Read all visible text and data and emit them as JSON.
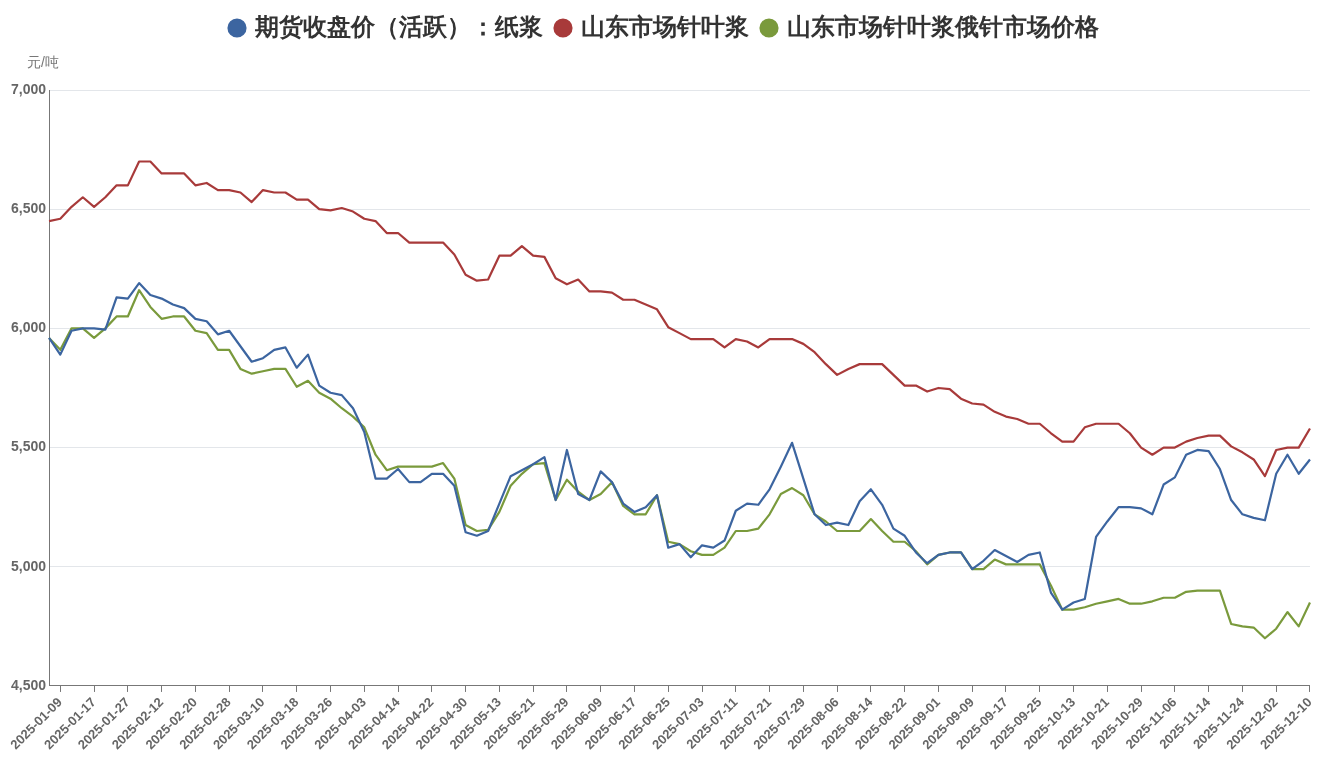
{
  "chart_data": {
    "type": "line",
    "ylabel": "元/吨",
    "categories": [
      null,
      "2025-01-09",
      null,
      null,
      "2025-01-17",
      null,
      null,
      "2025-01-27",
      null,
      null,
      "2025-02-12",
      null,
      null,
      "2025-02-20",
      null,
      null,
      "2025-02-28",
      null,
      null,
      "2025-03-10",
      null,
      null,
      "2025-03-18",
      null,
      null,
      "2025-03-26",
      null,
      null,
      "2025-04-03",
      null,
      null,
      "2025-04-14",
      null,
      null,
      "2025-04-22",
      null,
      null,
      "2025-04-30",
      null,
      null,
      "2025-05-13",
      null,
      null,
      "2025-05-21",
      null,
      null,
      "2025-05-29",
      null,
      null,
      "2025-06-09",
      null,
      null,
      "2025-06-17",
      null,
      null,
      "2025-06-25",
      null,
      null,
      "2025-07-03",
      null,
      null,
      "2025-07-11",
      null,
      null,
      "2025-07-21",
      null,
      null,
      "2025-07-29",
      null,
      null,
      "2025-08-06",
      null,
      null,
      "2025-08-14",
      null,
      null,
      "2025-08-22",
      null,
      null,
      "2025-09-01",
      null,
      null,
      "2025-09-09",
      null,
      null,
      "2025-09-17",
      null,
      null,
      "2025-09-25",
      null,
      null,
      "2025-10-13",
      null,
      null,
      "2025-10-21",
      null,
      null,
      "2025-10-29",
      null,
      null,
      "2025-11-06",
      null,
      null,
      "2025-11-14",
      null,
      null,
      "2025-11-24",
      null,
      null,
      "2025-12-02",
      null,
      null,
      "2025-12-10"
    ],
    "series": [
      {
        "name": "期货收盘价（活跃）：纸浆",
        "color": "#3c65a0",
        "values": [
          5960,
          5890,
          5990,
          6000,
          6000,
          5995,
          6130,
          6125,
          6190,
          6140,
          6125,
          6100,
          6085,
          6040,
          6030,
          5975,
          5990,
          5925,
          5860,
          5875,
          5910,
          5920,
          5835,
          5890,
          5760,
          5730,
          5720,
          5665,
          5565,
          5370,
          5370,
          5410,
          5355,
          5355,
          5390,
          5390,
          5340,
          5145,
          5130,
          5150,
          5265,
          5380,
          5405,
          5430,
          5460,
          5280,
          5490,
          5305,
          5280,
          5400,
          5355,
          5265,
          5230,
          5250,
          5300,
          5080,
          5095,
          5040,
          5090,
          5080,
          5110,
          5235,
          5265,
          5260,
          5325,
          5420,
          5520,
          5370,
          5220,
          5175,
          5185,
          5175,
          5275,
          5325,
          5260,
          5160,
          5130,
          5060,
          5015,
          5050,
          5060,
          5060,
          4990,
          5025,
          5070,
          5045,
          5020,
          5050,
          5060,
          4890,
          4820,
          4850,
          4865,
          5125,
          5190,
          5250,
          5250,
          5245,
          5220,
          5345,
          5375,
          5470,
          5490,
          5485,
          5410,
          5280,
          5220,
          5205,
          5195,
          5390,
          5470,
          5390,
          5450
        ]
      },
      {
        "name": "山东市场针叶浆",
        "color": "#a83a3a",
        "values": [
          6450,
          6460,
          6510,
          6550,
          6510,
          6550,
          6600,
          6600,
          6700,
          6700,
          6650,
          6650,
          6650,
          6600,
          6610,
          6580,
          6580,
          6570,
          6530,
          6580,
          6570,
          6570,
          6540,
          6540,
          6500,
          6495,
          6505,
          6490,
          6460,
          6450,
          6400,
          6400,
          6360,
          6360,
          6360,
          6360,
          6310,
          6225,
          6200,
          6205,
          6305,
          6305,
          6345,
          6305,
          6300,
          6210,
          6185,
          6205,
          6155,
          6155,
          6150,
          6120,
          6120,
          6100,
          6080,
          6005,
          5980,
          5955,
          5955,
          5955,
          5920,
          5955,
          5945,
          5920,
          5955,
          5955,
          5955,
          5935,
          5900,
          5850,
          5805,
          5830,
          5850,
          5850,
          5850,
          5805,
          5760,
          5760,
          5735,
          5750,
          5745,
          5705,
          5685,
          5680,
          5650,
          5630,
          5620,
          5600,
          5600,
          5560,
          5525,
          5525,
          5585,
          5600,
          5600,
          5600,
          5560,
          5500,
          5470,
          5500,
          5500,
          5525,
          5540,
          5550,
          5550,
          5505,
          5480,
          5450,
          5380,
          5490,
          5500,
          5500,
          5580
        ]
      },
      {
        "name": "山东市场针叶浆俄针市场价格",
        "color": "#7a9a3c",
        "values": [
          5960,
          5910,
          6000,
          6000,
          5960,
          6000,
          6050,
          6050,
          6160,
          6090,
          6040,
          6050,
          6050,
          5990,
          5980,
          5910,
          5910,
          5830,
          5810,
          5820,
          5830,
          5830,
          5755,
          5780,
          5730,
          5705,
          5665,
          5630,
          5585,
          5470,
          5405,
          5420,
          5420,
          5420,
          5420,
          5435,
          5370,
          5175,
          5150,
          5155,
          5230,
          5340,
          5390,
          5430,
          5435,
          5280,
          5365,
          5315,
          5280,
          5305,
          5355,
          5255,
          5220,
          5220,
          5300,
          5105,
          5095,
          5065,
          5050,
          5050,
          5080,
          5150,
          5150,
          5160,
          5220,
          5305,
          5330,
          5300,
          5220,
          5190,
          5150,
          5150,
          5150,
          5200,
          5150,
          5105,
          5105,
          5065,
          5010,
          5050,
          5060,
          5060,
          4990,
          4990,
          5030,
          5010,
          5010,
          5010,
          5010,
          4920,
          4820,
          4820,
          4830,
          4845,
          4855,
          4865,
          4845,
          4845,
          4855,
          4870,
          4870,
          4895,
          4900,
          4900,
          4900,
          4760,
          4750,
          4745,
          4700,
          4740,
          4810,
          4750,
          4850
        ]
      }
    ],
    "ylim": [
      4500,
      7000
    ],
    "yticks": [
      {
        "value": 4500,
        "label": "4,500"
      },
      {
        "value": 5000,
        "label": "5,000"
      },
      {
        "value": 5500,
        "label": "5,500"
      },
      {
        "value": 6000,
        "label": "6,000"
      },
      {
        "value": 6500,
        "label": "6,500"
      },
      {
        "value": 7000,
        "label": "7,000"
      }
    ],
    "grid": "y",
    "legend": "top",
    "marker": "none",
    "line_style": "solid"
  }
}
